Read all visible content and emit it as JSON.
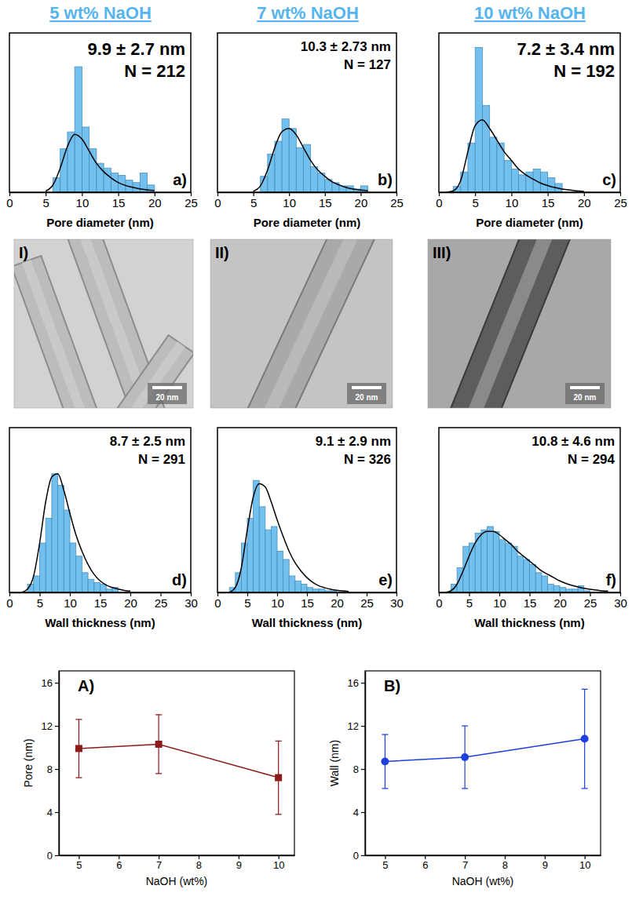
{
  "headers": [
    "5 wt% NaOH",
    "7 wt% NaOH",
    "10 wt% NaOH"
  ],
  "images": [
    {
      "label": "I)",
      "scale_bar": "20 nm"
    },
    {
      "label": "II)",
      "scale_bar": "20 nm"
    },
    {
      "label": "III)",
      "scale_bar": "20 nm"
    }
  ],
  "chart_data": [
    {
      "type": "histogram",
      "panel": "a)",
      "annotations": [
        "9.9 ± 2.7 nm",
        "N = 212"
      ],
      "x_label": "Pore diameter (nm)",
      "xlim": [
        0,
        25
      ],
      "xticks": [
        0,
        5,
        10,
        15,
        20,
        25
      ],
      "ylim": [
        0,
        66
      ],
      "tick_labels": "x",
      "bins": [
        6,
        7,
        8,
        9,
        10,
        11,
        12,
        13,
        14,
        15,
        16,
        17,
        18,
        19,
        20
      ],
      "series": [
        {
          "type": "bar",
          "color": "#5ab4ea",
          "values": [
            6,
            18,
            25,
            52,
            27,
            18,
            12,
            10,
            8,
            7,
            5,
            4,
            8,
            3
          ]
        },
        {
          "type": "line",
          "color": "#000000",
          "x": [
            5,
            6,
            7,
            8,
            9,
            10,
            11,
            12,
            13,
            14,
            15,
            16,
            17,
            18,
            19,
            20
          ],
          "values": [
            0.5,
            3,
            10,
            19,
            24,
            22,
            17,
            12,
            8.5,
            6,
            4,
            2.8,
            2,
            1.4,
            1,
            0.7
          ]
        }
      ]
    },
    {
      "type": "histogram",
      "panel": "b)",
      "annotations": [
        "10.3 ± 2.73 nm",
        "N = 127"
      ],
      "x_label": "Pore diameter (nm)",
      "xlim": [
        0,
        25
      ],
      "xticks": [
        0,
        5,
        10,
        15,
        20,
        25
      ],
      "ylim": [
        0,
        50
      ],
      "tick_labels": "x",
      "bins": [
        6,
        7,
        8,
        9,
        10,
        11,
        12,
        13,
        14,
        15,
        16,
        17,
        18,
        19,
        20,
        21
      ],
      "series": [
        {
          "type": "bar",
          "color": "#5ab4ea",
          "values": [
            5,
            12,
            16,
            23,
            20,
            14,
            15,
            8,
            6,
            4,
            3,
            2,
            2,
            1,
            2
          ]
        },
        {
          "type": "line",
          "color": "#000000",
          "x": [
            5,
            6,
            7,
            8,
            9,
            10,
            11,
            12,
            13,
            14,
            15,
            16,
            17,
            18,
            19,
            20,
            21
          ],
          "values": [
            0.3,
            2,
            7,
            14,
            19,
            20,
            18,
            14,
            10,
            7,
            5,
            3.3,
            2.3,
            1.5,
            1,
            0.7,
            0.5
          ]
        }
      ]
    },
    {
      "type": "histogram",
      "panel": "c)",
      "annotations": [
        "7.2 ± 3.4 nm",
        "N = 192"
      ],
      "x_label": "Pore diameter (nm)",
      "xlim": [
        0,
        25
      ],
      "xticks": [
        0,
        5,
        10,
        15,
        20,
        25
      ],
      "ylim": [
        0,
        55
      ],
      "tick_labels": "x",
      "bins": [
        2,
        3,
        4,
        5,
        6,
        7,
        8,
        9,
        10,
        11,
        12,
        13,
        14,
        15,
        16,
        17
      ],
      "series": [
        {
          "type": "bar",
          "color": "#5ab4ea",
          "values": [
            2,
            7,
            17,
            50,
            30,
            19,
            17,
            11,
            8,
            6,
            7,
            8,
            7,
            5,
            3
          ]
        },
        {
          "type": "line",
          "color": "#000000",
          "x": [
            1,
            2,
            3,
            4,
            5,
            6,
            7,
            8,
            9,
            10,
            11,
            12,
            13,
            14,
            15,
            16,
            17,
            18,
            19,
            20
          ],
          "values": [
            0,
            0.5,
            4,
            14,
            23,
            25,
            22,
            18,
            14,
            11,
            8,
            6,
            4.5,
            3.2,
            2.3,
            1.6,
            1.1,
            0.8,
            0.5,
            0.3
          ]
        }
      ]
    },
    {
      "type": "histogram",
      "panel": "d)",
      "annotations": [
        "8.7 ± 2.5 nm",
        "N = 291"
      ],
      "x_label": "Wall thickness (nm)",
      "xlim": [
        0,
        30
      ],
      "xticks": [
        0,
        5,
        10,
        15,
        20,
        25,
        30
      ],
      "ylim": [
        0,
        100
      ],
      "tick_labels": "x",
      "bins": [
        3,
        4,
        5,
        6,
        7,
        8,
        9,
        10,
        11,
        12,
        13,
        14,
        15,
        16,
        17,
        18
      ],
      "series": [
        {
          "type": "bar",
          "color": "#5ab4ea",
          "values": [
            5,
            10,
            30,
            45,
            72,
            65,
            50,
            30,
            22,
            12,
            8,
            6,
            5,
            2,
            3
          ]
        },
        {
          "type": "line",
          "color": "#000000",
          "x": [
            2,
            3,
            4,
            5,
            6,
            7,
            8,
            9,
            10,
            11,
            12,
            13,
            14,
            15,
            16,
            17,
            18,
            19,
            20
          ],
          "values": [
            0,
            2,
            10,
            30,
            55,
            70,
            72,
            62,
            48,
            35,
            25,
            17,
            11,
            7,
            4.5,
            3,
            2,
            1.2,
            0.8
          ]
        }
      ]
    },
    {
      "type": "histogram",
      "panel": "e)",
      "annotations": [
        "9.1 ± 2.9 nm",
        "N = 326"
      ],
      "x_label": "Wall thickness (nm)",
      "xlim": [
        0,
        30
      ],
      "xticks": [
        0,
        5,
        10,
        15,
        20,
        25,
        30
      ],
      "ylim": [
        0,
        100
      ],
      "tick_labels": "x",
      "bins": [
        2,
        3,
        4,
        5,
        6,
        7,
        8,
        9,
        10,
        11,
        12,
        13,
        14,
        15,
        16,
        17,
        18,
        19,
        20
      ],
      "series": [
        {
          "type": "bar",
          "color": "#5ab4ea",
          "values": [
            3,
            12,
            30,
            45,
            68,
            52,
            38,
            40,
            25,
            20,
            10,
            7,
            5,
            3,
            2,
            2,
            1,
            1
          ]
        },
        {
          "type": "line",
          "color": "#000000",
          "x": [
            2,
            3,
            4,
            5,
            6,
            7,
            8,
            9,
            10,
            11,
            12,
            13,
            14,
            15,
            16,
            17,
            18,
            19,
            20,
            21,
            22
          ],
          "values": [
            0,
            3,
            15,
            38,
            58,
            66,
            64,
            55,
            44,
            34,
            25,
            18,
            13,
            9,
            6,
            4,
            2.8,
            1.9,
            1.3,
            0.9,
            0.6
          ]
        }
      ]
    },
    {
      "type": "histogram",
      "panel": "f)",
      "annotations": [
        "10.8 ± 4.6 nm",
        "N = 294"
      ],
      "x_label": "Wall thickness (nm)",
      "xlim": [
        0,
        30
      ],
      "xticks": [
        0,
        5,
        10,
        15,
        20,
        25,
        30
      ],
      "ylim": [
        0,
        100
      ],
      "tick_labels": "x",
      "bins": [
        2,
        3,
        4,
        5,
        6,
        7,
        8,
        9,
        10,
        11,
        12,
        13,
        14,
        15,
        16,
        17,
        18,
        19,
        20,
        21,
        22,
        23,
        24,
        25
      ],
      "series": [
        {
          "type": "bar",
          "color": "#5ab4ea",
          "values": [
            5,
            15,
            28,
            30,
            36,
            38,
            40,
            37,
            32,
            30,
            28,
            22,
            20,
            17,
            12,
            10,
            5,
            4,
            3,
            2,
            2,
            4,
            1
          ]
        },
        {
          "type": "line",
          "color": "#000000",
          "x": [
            1,
            2,
            3,
            4,
            5,
            6,
            7,
            8,
            9,
            10,
            11,
            12,
            13,
            14,
            15,
            16,
            17,
            18,
            19,
            20,
            21,
            22,
            23,
            24,
            25,
            26,
            27,
            28
          ],
          "values": [
            0,
            1,
            5,
            13,
            22,
            30,
            35,
            37,
            37,
            35,
            32,
            29,
            25,
            22,
            19,
            16,
            13,
            11,
            9,
            7,
            5.5,
            4.3,
            3.3,
            2.5,
            1.9,
            1.4,
            1,
            0.8
          ]
        }
      ]
    },
    {
      "type": "line",
      "panel": "A)",
      "x_label": "NaOH (wt%)",
      "y_label": "Pore (nm)",
      "x": [
        5,
        7,
        10
      ],
      "xlim": [
        4.5,
        10.4
      ],
      "xticks": [
        5,
        6,
        7,
        8,
        9,
        10
      ],
      "ylim": [
        0,
        17.1
      ],
      "yticks": [
        0,
        4,
        8,
        12,
        16
      ],
      "series": [
        {
          "color": "#8b1a1a",
          "marker": "square",
          "values": [
            9.9,
            10.3,
            7.2
          ],
          "errors": [
            2.7,
            2.73,
            3.4
          ]
        }
      ]
    },
    {
      "type": "line",
      "panel": "B)",
      "x_label": "NaOH (wt%)",
      "y_label": "Wall (nm)",
      "x": [
        5,
        7,
        10
      ],
      "xlim": [
        4.5,
        10.4
      ],
      "xticks": [
        5,
        6,
        7,
        8,
        9,
        10
      ],
      "ylim": [
        0,
        17.1
      ],
      "yticks": [
        0,
        4,
        8,
        12,
        16
      ],
      "series": [
        {
          "color": "#1f3fe0",
          "marker": "circle",
          "values": [
            8.7,
            9.1,
            10.8
          ],
          "errors": [
            2.5,
            2.9,
            4.6
          ]
        }
      ]
    }
  ]
}
